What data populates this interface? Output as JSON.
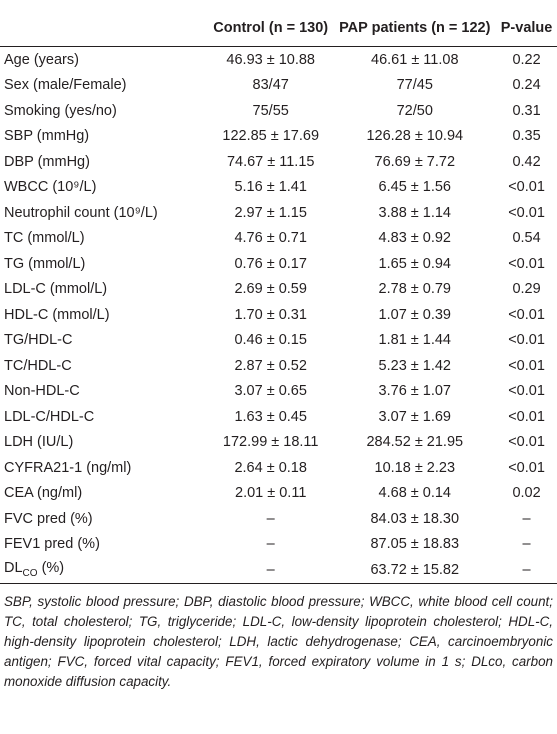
{
  "table": {
    "header": [
      "Control (n = 130)",
      "PAP patients (n = 122)",
      "P-value"
    ],
    "rows": [
      [
        "Age (years)",
        "46.93 ± 10.88",
        "46.61 ± 11.08",
        "0.22"
      ],
      [
        "Sex (male/Female)",
        "83/47",
        "77/45",
        "0.24"
      ],
      [
        "Smoking (yes/no)",
        "75/55",
        "72/50",
        "0.31"
      ],
      [
        "SBP (mmHg)",
        "122.85 ± 17.69",
        "126.28 ± 10.94",
        "0.35"
      ],
      [
        "DBP (mmHg)",
        "74.67 ± 11.15",
        "76.69 ± 7.72",
        "0.42"
      ],
      [
        "WBCC (10⁹/L)",
        "5.16 ± 1.41",
        "6.45 ± 1.56",
        "<0.01"
      ],
      [
        "Neutrophil count (10⁹/L)",
        "2.97 ± 1.15",
        "3.88 ± 1.14",
        "<0.01"
      ],
      [
        "TC (mmol/L)",
        "4.76 ± 0.71",
        "4.83 ± 0.92",
        "0.54"
      ],
      [
        "TG (mmol/L)",
        "0.76 ± 0.17",
        "1.65 ± 0.94",
        "<0.01"
      ],
      [
        "LDL-C (mmol/L)",
        "2.69 ± 0.59",
        "2.78 ± 0.79",
        "0.29"
      ],
      [
        "HDL-C (mmol/L)",
        "1.70 ± 0.31",
        "1.07 ± 0.39",
        "<0.01"
      ],
      [
        "TG/HDL-C",
        "0.46 ± 0.15",
        "1.81 ± 1.44",
        "<0.01"
      ],
      [
        "TC/HDL-C",
        "2.87 ± 0.52",
        "5.23 ± 1.42",
        "<0.01"
      ],
      [
        "Non-HDL-C",
        "3.07 ± 0.65",
        "3.76 ± 1.07",
        "<0.01"
      ],
      [
        "LDL-C/HDL-C",
        "1.63 ± 0.45",
        "3.07 ± 1.69",
        "<0.01"
      ],
      [
        "LDH (IU/L)",
        "172.99 ± 18.11",
        "284.52 ± 21.95",
        "<0.01"
      ],
      [
        "CYFRA21-1 (ng/ml)",
        "2.64 ± 0.18",
        "10.18 ± 2.23",
        "<0.01"
      ],
      [
        "CEA (ng/ml)",
        "2.01 ± 0.11",
        "4.68 ± 0.14",
        "0.02"
      ],
      [
        "FVC pred (%)",
        "–",
        "84.03 ± 18.30",
        "–"
      ],
      [
        "FEV1 pred (%)",
        "–",
        "87.05 ± 18.83",
        "–"
      ],
      [
        [
          "DL",
          "CO",
          " (%)"
        ],
        "–",
        "63.72 ± 15.82",
        "–"
      ]
    ]
  },
  "footnote": "SBP, systolic blood pressure; DBP, diastolic blood pressure; WBCC, white blood cell count; TC, total cholesterol; TG, triglyceride; LDL-C, low-density lipoprotein cholesterol; HDL-C, high-density lipoprotein cholesterol; LDH, lactic dehydrogenase; CEA, carcinoembryonic antigen; FVC, forced vital capacity; FEV1, forced expiratory volume in 1 s; DLco, carbon monoxide diffusion capacity."
}
